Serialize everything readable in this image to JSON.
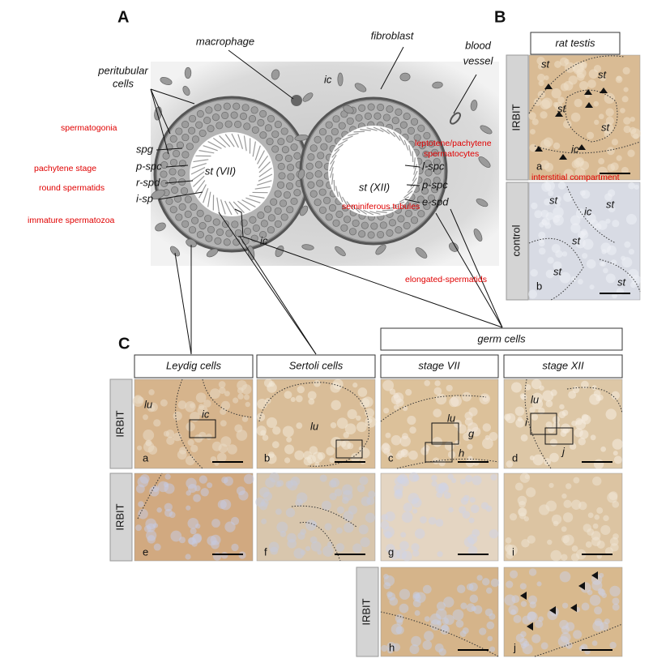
{
  "panel_a": {
    "letter": "A",
    "macrophage": "macrophage",
    "fibroblast": "fibroblast",
    "blood_vessel": [
      "blood",
      "vessel"
    ],
    "peritubular_cells": [
      "peritubular",
      "cells"
    ],
    "ic": [
      "ic",
      "ic"
    ],
    "tubule_left": "st (VII)",
    "tubule_right": "st (XII)",
    "left_cells": [
      "spg",
      "p-spc",
      "r-spd",
      "i-sp"
    ],
    "right_cells": [
      "l-spc",
      "p-spc",
      "e-spd"
    ],
    "notes": [
      "spermatogonia",
      "pachytene stage",
      "round spermatids",
      "immature spermatozoa",
      "leptotene/pachytene",
      "spermatocytes",
      "interstitial compartment",
      "seminiferous tubules",
      "elongated-spermatids"
    ]
  },
  "panel_b": {
    "letter": "B",
    "header": "rat testis",
    "rows": [
      {
        "label": "IRBIT",
        "letter": "a",
        "st": [
          "st",
          "st",
          "st",
          "st"
        ],
        "ic": "ic"
      },
      {
        "label": "control",
        "letter": "b",
        "st": [
          "st",
          "st",
          "st",
          "st",
          "st"
        ],
        "ic": "ic"
      }
    ]
  },
  "panel_c": {
    "letter": "C",
    "group": "germ cells",
    "columns": [
      "Leydig cells",
      "Sertoli cells",
      "stage VII",
      "stage XII"
    ],
    "row_labels": [
      "IRBIT",
      "IRBIT",
      "IRBIT"
    ],
    "panels": [
      {
        "letter": "a",
        "texts": [
          "lu",
          "ic"
        ]
      },
      {
        "letter": "b",
        "texts": [
          "lu"
        ]
      },
      {
        "letter": "c",
        "texts": [
          "lu",
          "g",
          "h"
        ]
      },
      {
        "letter": "d",
        "texts": [
          "lu",
          "i",
          "j"
        ]
      },
      {
        "letter": "e",
        "texts": []
      },
      {
        "letter": "f",
        "texts": []
      },
      {
        "letter": "g",
        "texts": []
      },
      {
        "letter": "i",
        "texts": []
      },
      {
        "letter": "h",
        "texts": []
      },
      {
        "letter": "j",
        "texts": []
      }
    ]
  }
}
